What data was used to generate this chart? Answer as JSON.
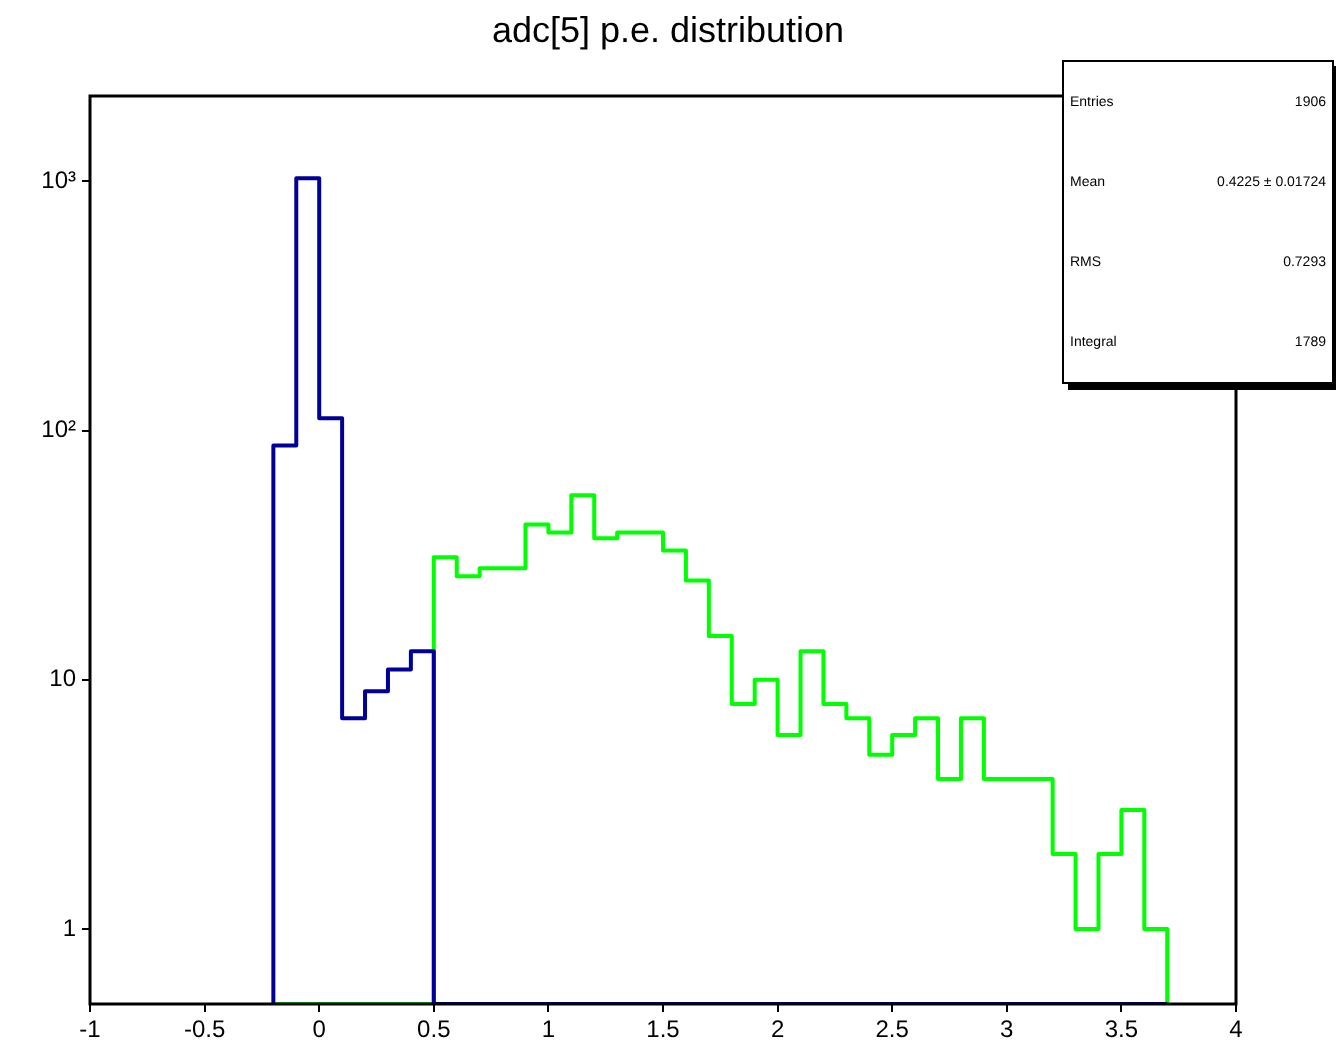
{
  "chart_data": {
    "type": "histogram",
    "title": "adc[5] p.e. distribution",
    "bins": [
      -0.2,
      -0.1,
      0,
      0.1,
      0.2,
      0.3,
      0.4,
      0.5,
      0.6,
      0.7,
      0.8,
      0.9,
      1,
      1.1,
      1.2,
      1.3,
      1.4,
      1.5,
      1.6,
      1.7,
      1.8,
      1.9,
      2,
      2.1,
      2.2,
      2.3,
      2.4,
      2.5,
      2.6,
      2.7,
      2.8,
      2.9,
      3,
      3.1,
      3.2,
      3.3,
      3.4,
      3.5,
      3.6,
      3.7
    ],
    "series": [
      {
        "color": "#000099",
        "values": [
          87,
          1030,
          112,
          7,
          9,
          11,
          13,
          null,
          null,
          null,
          null,
          null,
          null,
          null,
          null,
          null,
          null,
          null,
          null,
          null,
          null,
          null,
          null,
          null,
          null,
          null,
          null,
          null,
          null,
          null,
          null,
          null,
          null,
          null,
          null,
          null,
          null,
          null,
          null
        ]
      },
      {
        "color": "#00ff00",
        "values": [
          null,
          null,
          null,
          null,
          null,
          null,
          null,
          31,
          26,
          28,
          28,
          42,
          39,
          55,
          37,
          39,
          39,
          33,
          25,
          15,
          8,
          10,
          6,
          13,
          8,
          7,
          5,
          6,
          7,
          4,
          7,
          4,
          4,
          4,
          2,
          1,
          2,
          3,
          1
        ]
      }
    ],
    "xlim": [
      -1,
      4
    ],
    "xticks": [
      -1,
      -0.5,
      0,
      0.5,
      1,
      1.5,
      2,
      2.5,
      3,
      3.5,
      4
    ],
    "log": "y",
    "ylim": [
      0.5,
      2200
    ],
    "yticks": [
      1,
      10,
      {
        "value": 100,
        "label": "10²"
      },
      {
        "value": 1000,
        "label": "10³"
      }
    ],
    "grid": false,
    "legend": false,
    "annotations": [
      "Entries",
      "1906",
      "Mean",
      "0.4225 ± 0.01724",
      "RMS",
      "0.7293",
      "Integral",
      "1789"
    ]
  }
}
